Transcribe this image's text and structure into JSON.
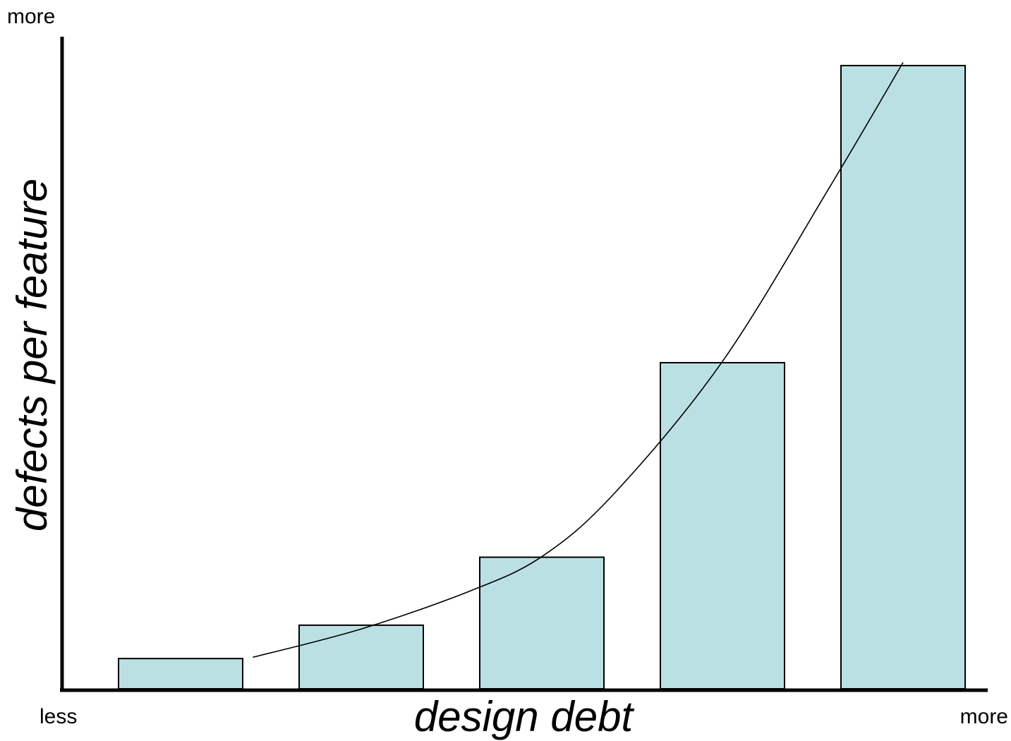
{
  "chart_data": {
    "type": "bar",
    "xlabel": "design debt",
    "ylabel": "defects per feature",
    "x_axis_labels": {
      "low": "less",
      "high": "more"
    },
    "y_axis_labels": {
      "high": "more"
    },
    "categories": [
      "",
      "",
      "",
      "",
      ""
    ],
    "values": [
      4.8,
      10.1,
      20.9,
      51.8,
      99.0
    ],
    "ylim": [
      0,
      100
    ],
    "grid": false,
    "legend": "none",
    "trend_line": {
      "type": "line",
      "x": [
        0.4,
        1.0,
        1.6,
        2.0,
        2.4,
        3.0,
        3.6,
        4.0
      ],
      "values": [
        5.0,
        9.5,
        15.5,
        21.0,
        31.0,
        52.0,
        80.0,
        99.5
      ]
    },
    "colors": {
      "bar_fill": "#bbe0e3",
      "bar_stroke": "#000000",
      "axis": "#000000",
      "trend": "#000000"
    }
  }
}
